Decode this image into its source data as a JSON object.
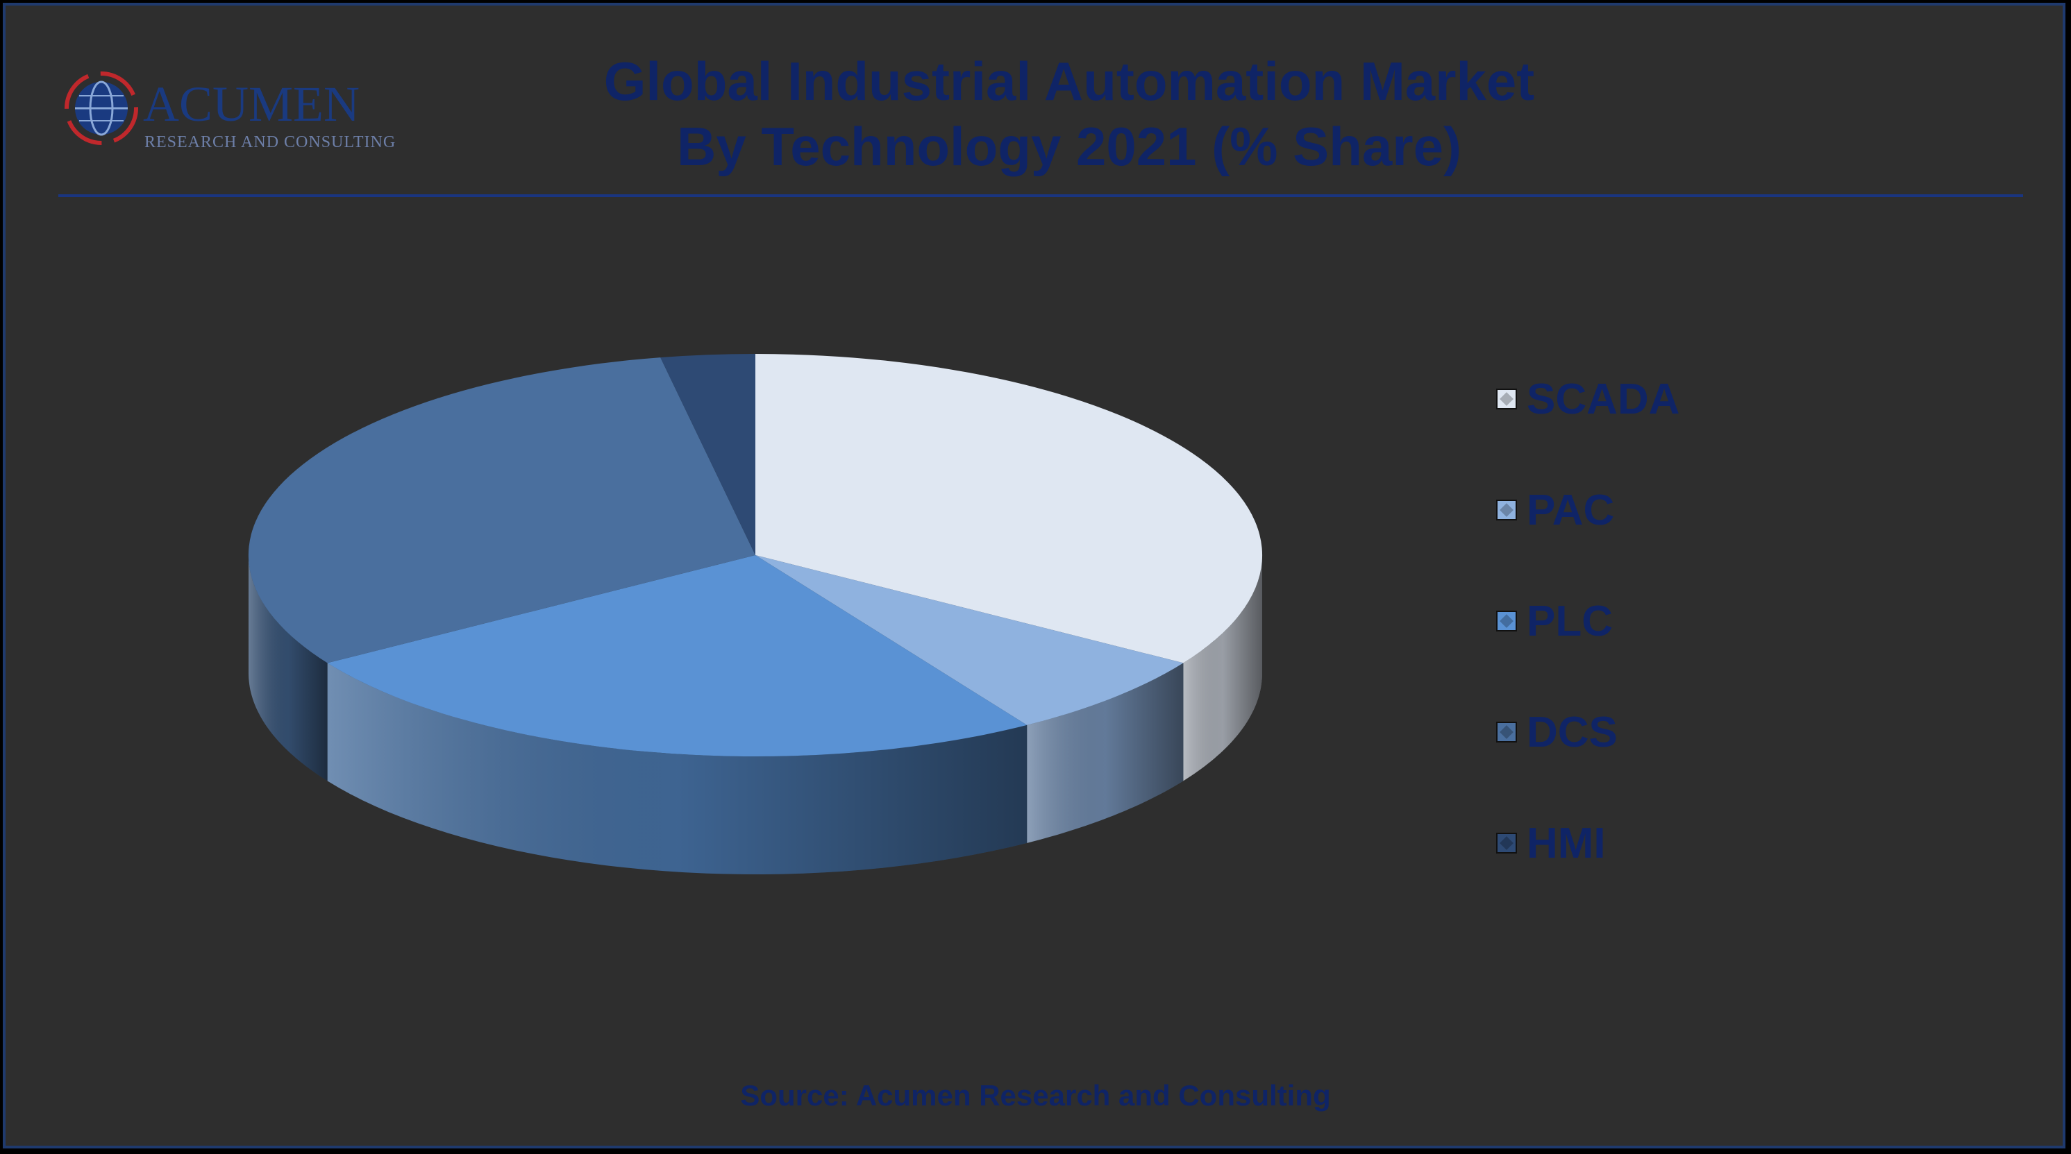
{
  "logo": {
    "name": "ACUMEN",
    "tagline": "RESEARCH AND CONSULTING"
  },
  "header": {
    "title_line1": "Global Industrial Automation Market",
    "title_line2": "By Technology 2021 (% Share)"
  },
  "chart_data": {
    "type": "pie",
    "title": "Global Industrial Automation Market By Technology 2021 (% Share)",
    "categories": [
      "SCADA",
      "PAC",
      "PLC",
      "DCS",
      "HMI"
    ],
    "values": [
      34,
      7,
      25,
      31,
      3
    ],
    "unit": "% share",
    "colors": [
      "#dfe7f2",
      "#8fb2df",
      "#5a92d4",
      "#4a6f9e",
      "#2e4a74"
    ],
    "legend_position": "right",
    "data_labels_shown": false
  },
  "footer": {
    "source": "Source: Acumen Research and Consulting"
  }
}
